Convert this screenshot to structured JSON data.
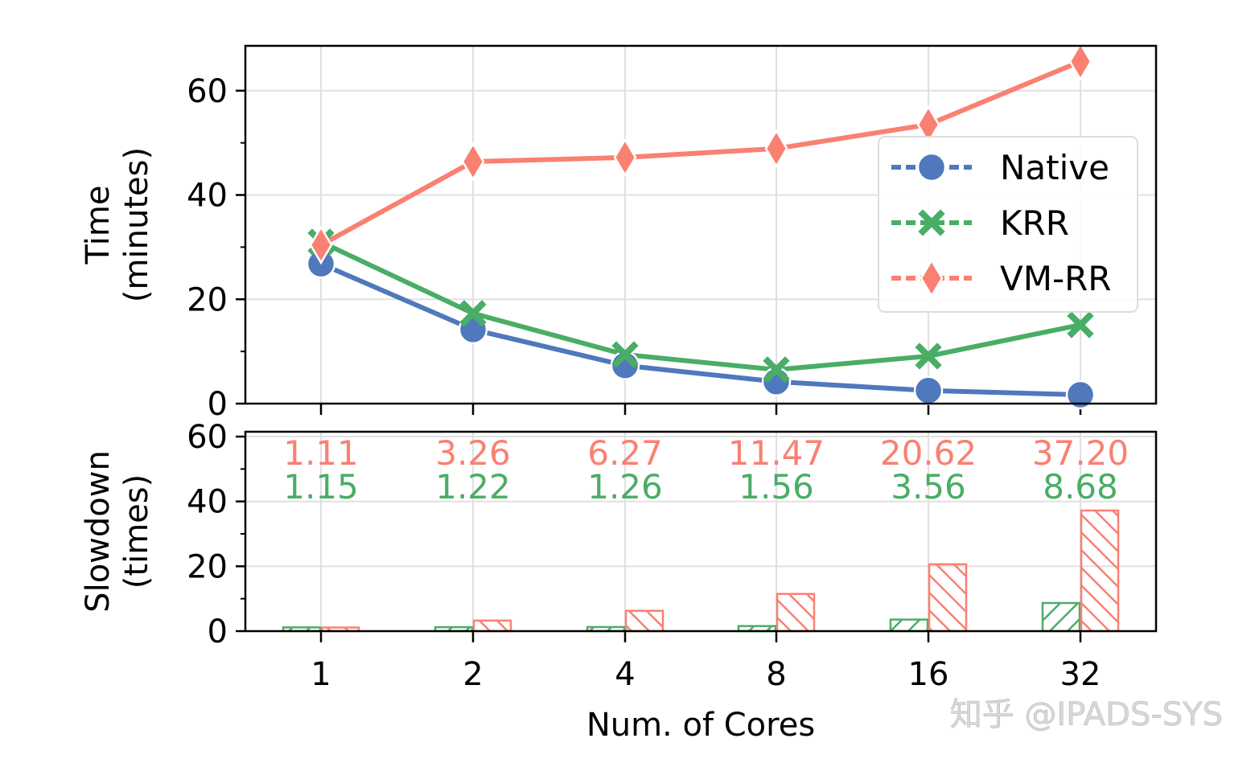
{
  "chart_data": [
    {
      "type": "line",
      "ylabel": "Time\n(minutes)",
      "xlabel": "",
      "categories": [
        "1",
        "2",
        "4",
        "8",
        "16",
        "32"
      ],
      "ylim": [
        0,
        68.6
      ],
      "yticks": [
        0,
        20,
        40,
        60
      ],
      "grid": true,
      "legend_placement": "center-right",
      "series": [
        {
          "name": "Native",
          "color": "#4f78bd",
          "marker": "circle",
          "values": [
            26.8,
            14.2,
            7.3,
            4.2,
            2.5,
            1.7
          ]
        },
        {
          "name": "KRR",
          "color": "#4aad66",
          "marker": "x",
          "values": [
            31.0,
            17.3,
            9.4,
            6.5,
            9.1,
            15.1
          ]
        },
        {
          "name": "VM-RR",
          "color": "#fa8072",
          "marker": "diamond",
          "values": [
            30.4,
            46.4,
            47.2,
            48.9,
            53.5,
            65.6
          ]
        }
      ]
    },
    {
      "type": "bar",
      "ylabel": "Slowdown\n(times)",
      "xlabel": "Num. of Cores",
      "categories": [
        "1",
        "2",
        "4",
        "8",
        "16",
        "32"
      ],
      "ylim": [
        0,
        61.5
      ],
      "yticks": [
        0,
        20,
        40,
        60
      ],
      "grid": true,
      "series": [
        {
          "name": "KRR",
          "color": "#4aad66",
          "hatch": "//",
          "values": [
            1.15,
            1.22,
            1.26,
            1.56,
            3.56,
            8.68
          ],
          "labels": [
            "1.15",
            "1.22",
            "1.26",
            "1.56",
            "3.56",
            "8.68"
          ]
        },
        {
          "name": "VM-RR",
          "color": "#fa8072",
          "hatch": "\\\\",
          "values": [
            1.11,
            3.26,
            6.27,
            11.47,
            20.62,
            37.2
          ],
          "labels": [
            "1.11",
            "3.26",
            "6.27",
            "11.47",
            "20.62",
            "37.20"
          ]
        }
      ]
    }
  ],
  "watermark": "知乎 @IPADS-SYS"
}
